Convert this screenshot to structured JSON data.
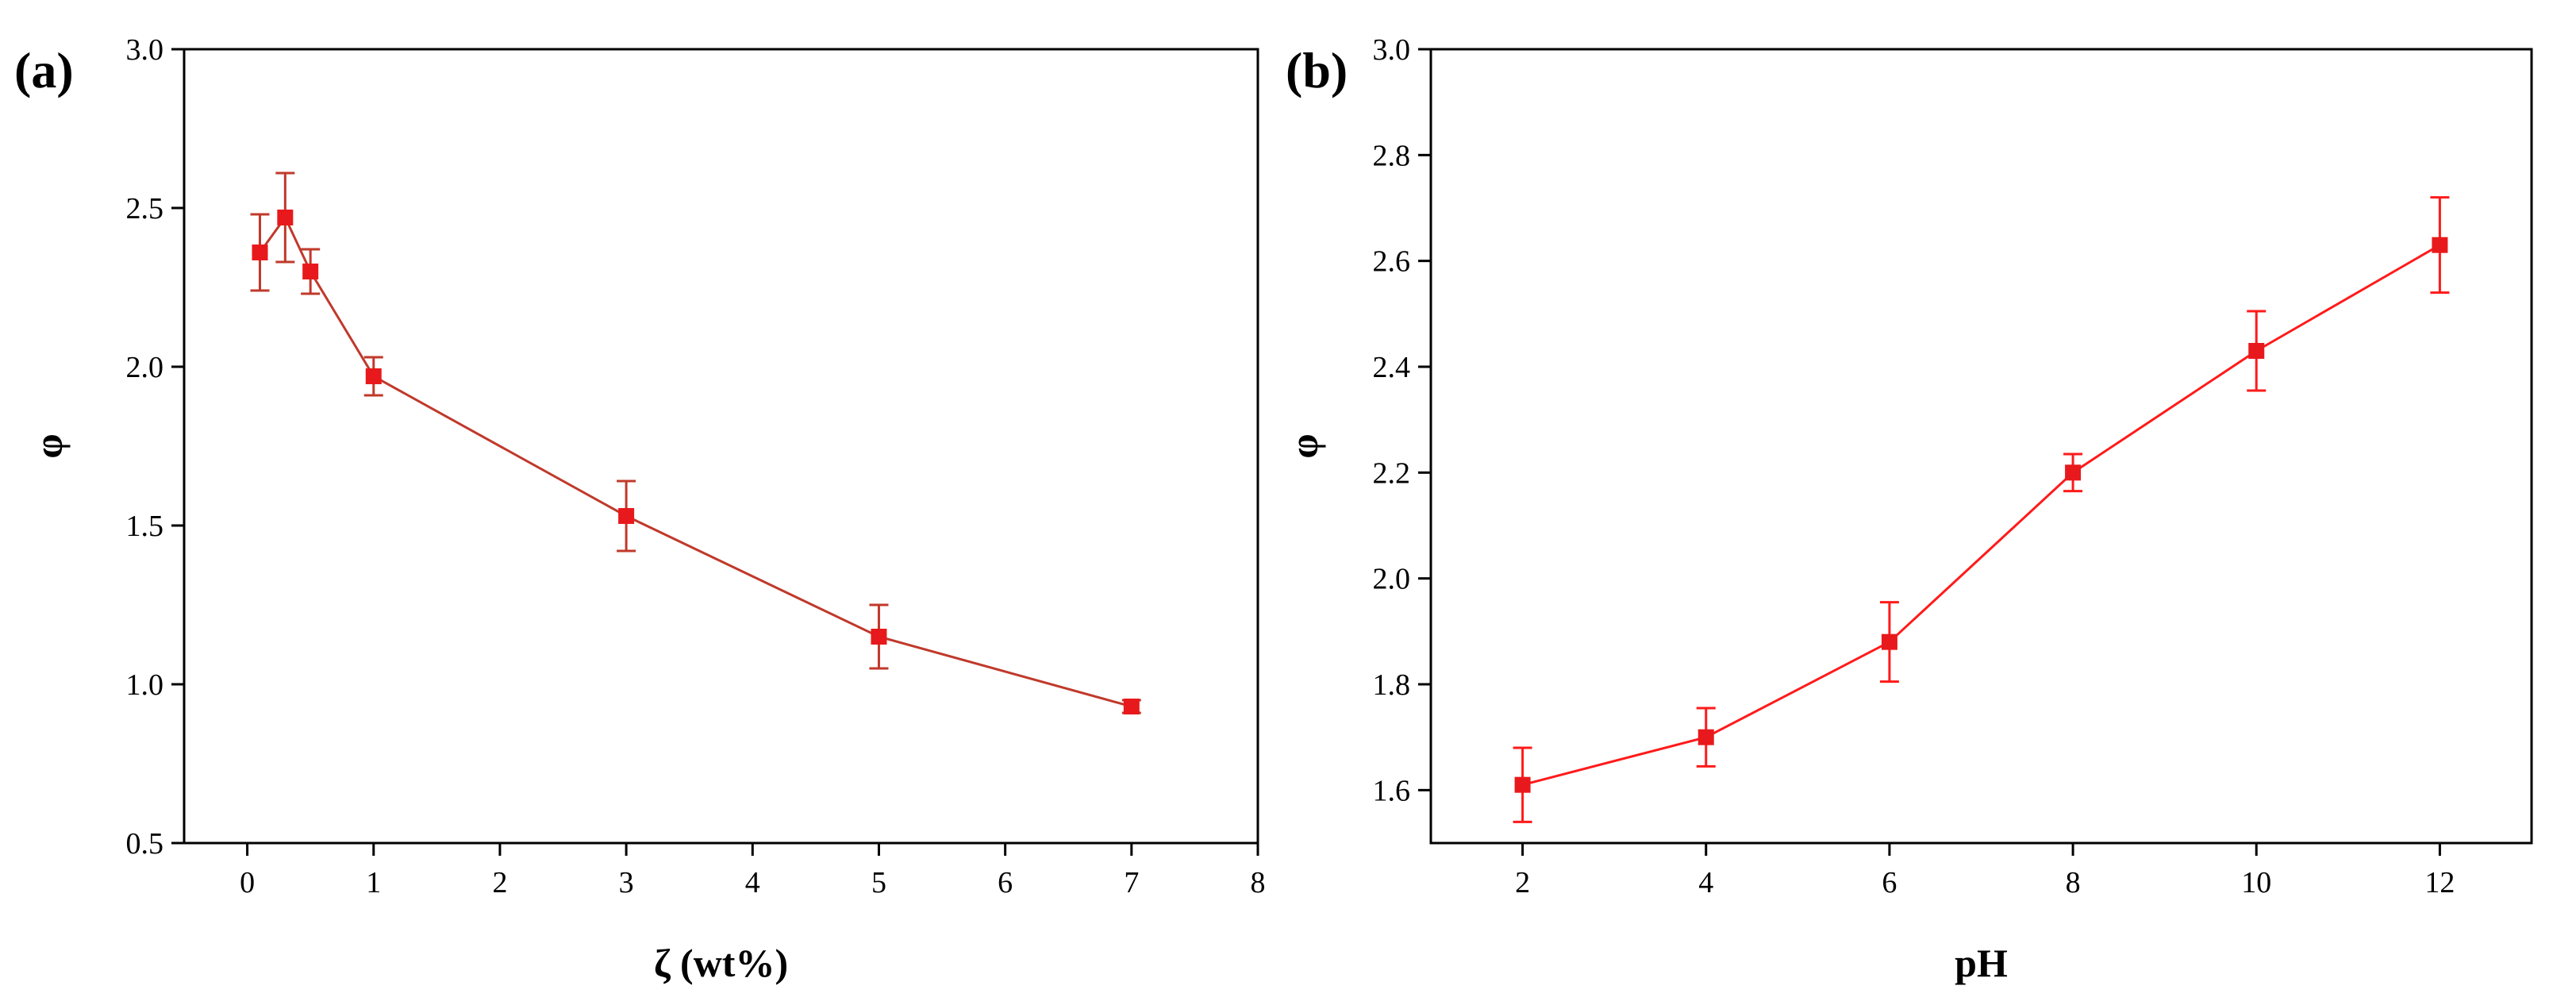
{
  "chart_data": [
    {
      "type": "line",
      "panel_label": "(a)",
      "title": "",
      "xlabel": "ζ (wt%)",
      "ylabel": "φ",
      "xlim": [
        -0.5,
        8
      ],
      "ylim": [
        0.5,
        3.0
      ],
      "xticks": [
        "0",
        "1",
        "2",
        "3",
        "4",
        "5",
        "6",
        "7",
        "8"
      ],
      "yticks": [
        "0.5",
        "1.0",
        "1.5",
        "2.0",
        "2.5",
        "3.0"
      ],
      "grid": false,
      "series": [
        {
          "name": "φ",
          "color": "#e8191c",
          "line_color": "#c0392b",
          "marker": "square",
          "x": [
            0.1,
            0.3,
            0.5,
            1,
            3,
            5,
            7
          ],
          "y": [
            2.36,
            2.47,
            2.3,
            1.97,
            1.53,
            1.15,
            0.93
          ],
          "err": [
            0.12,
            0.14,
            0.07,
            0.06,
            0.11,
            0.1,
            0.02
          ]
        }
      ]
    },
    {
      "type": "line",
      "panel_label": "(b)",
      "title": "",
      "xlabel": "pH",
      "ylabel": "φ",
      "xlim": [
        1,
        13
      ],
      "ylim": [
        1.5,
        3.0
      ],
      "xticks": [
        "2",
        "4",
        "6",
        "8",
        "10",
        "12"
      ],
      "yticks": [
        "1.6",
        "1.8",
        "2.0",
        "2.2",
        "2.4",
        "2.6",
        "2.8",
        "3.0"
      ],
      "grid": false,
      "series": [
        {
          "name": "φ",
          "color": "#e8191c",
          "line_color": "#ff1a1a",
          "marker": "square",
          "x": [
            2,
            4,
            6,
            8,
            10,
            12
          ],
          "y": [
            1.61,
            1.7,
            1.88,
            2.2,
            2.43,
            2.63
          ],
          "err": [
            0.07,
            0.055,
            0.075,
            0.035,
            0.075,
            0.09
          ]
        }
      ]
    }
  ]
}
